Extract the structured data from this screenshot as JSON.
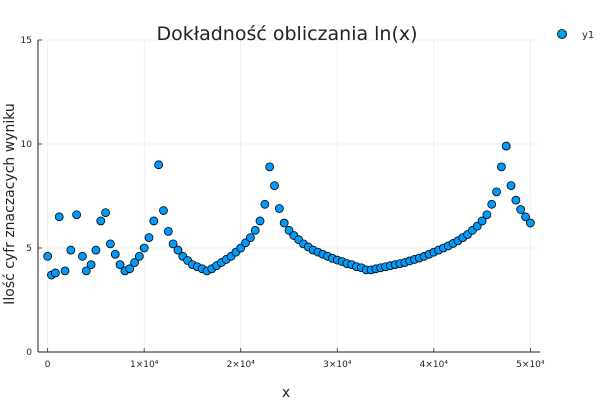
{
  "chart_data": {
    "type": "scatter",
    "title": "Dokładność obliczania ln(x)",
    "xlabel": "x",
    "ylabel": "Ilość cyfr znaczacych wyniku",
    "xlim": [
      -1000,
      51000
    ],
    "ylim": [
      0,
      15
    ],
    "xticks": [
      0,
      10000,
      20000,
      30000,
      40000,
      50000
    ],
    "xtick_labels": [
      "0",
      "1×10⁴",
      "2×10⁴",
      "3×10⁴",
      "4×10⁴",
      "5×10⁴"
    ],
    "yticks": [
      0,
      5,
      10,
      15
    ],
    "ytick_labels": [
      "0",
      "5",
      "10",
      "15"
    ],
    "grid": true,
    "legend_position": "top-right",
    "marker_color": "#009af9",
    "series": [
      {
        "name": "y1",
        "points": [
          [
            0,
            4.6
          ],
          [
            400,
            3.7
          ],
          [
            800,
            3.8
          ],
          [
            1200,
            6.5
          ],
          [
            1800,
            3.9
          ],
          [
            2400,
            4.9
          ],
          [
            3000,
            6.6
          ],
          [
            3600,
            4.6
          ],
          [
            4000,
            3.9
          ],
          [
            4500,
            4.2
          ],
          [
            5000,
            4.9
          ],
          [
            5500,
            6.3
          ],
          [
            6000,
            6.7
          ],
          [
            6500,
            5.2
          ],
          [
            7000,
            4.7
          ],
          [
            7500,
            4.2
          ],
          [
            8000,
            3.9
          ],
          [
            8500,
            4.0
          ],
          [
            9000,
            4.3
          ],
          [
            9500,
            4.6
          ],
          [
            10000,
            5.0
          ],
          [
            10500,
            5.5
          ],
          [
            11000,
            6.3
          ],
          [
            11500,
            9.0
          ],
          [
            12000,
            6.8
          ],
          [
            12500,
            5.8
          ],
          [
            13000,
            5.2
          ],
          [
            13500,
            4.9
          ],
          [
            14000,
            4.6
          ],
          [
            14500,
            4.4
          ],
          [
            15000,
            4.2
          ],
          [
            15500,
            4.1
          ],
          [
            16000,
            4.0
          ],
          [
            16500,
            3.9
          ],
          [
            17000,
            4.0
          ],
          [
            17500,
            4.15
          ],
          [
            18000,
            4.3
          ],
          [
            18500,
            4.45
          ],
          [
            19000,
            4.6
          ],
          [
            19500,
            4.8
          ],
          [
            20000,
            5.0
          ],
          [
            20500,
            5.25
          ],
          [
            21000,
            5.5
          ],
          [
            21500,
            5.85
          ],
          [
            22000,
            6.3
          ],
          [
            22500,
            7.1
          ],
          [
            23000,
            8.9
          ],
          [
            23500,
            8.0
          ],
          [
            24000,
            6.9
          ],
          [
            24500,
            6.2
          ],
          [
            25000,
            5.85
          ],
          [
            25500,
            5.6
          ],
          [
            26000,
            5.4
          ],
          [
            26500,
            5.2
          ],
          [
            27000,
            5.05
          ],
          [
            27500,
            4.9
          ],
          [
            28000,
            4.8
          ],
          [
            28500,
            4.7
          ],
          [
            29000,
            4.6
          ],
          [
            29500,
            4.5
          ],
          [
            30000,
            4.42
          ],
          [
            30500,
            4.35
          ],
          [
            31000,
            4.25
          ],
          [
            31500,
            4.2
          ],
          [
            32000,
            4.1
          ],
          [
            32500,
            4.05
          ],
          [
            33000,
            3.95
          ],
          [
            33500,
            3.95
          ],
          [
            34000,
            4.0
          ],
          [
            34500,
            4.05
          ],
          [
            35000,
            4.1
          ],
          [
            35500,
            4.15
          ],
          [
            36000,
            4.2
          ],
          [
            36500,
            4.25
          ],
          [
            37000,
            4.3
          ],
          [
            37500,
            4.38
          ],
          [
            38000,
            4.45
          ],
          [
            38500,
            4.52
          ],
          [
            39000,
            4.6
          ],
          [
            39500,
            4.7
          ],
          [
            40000,
            4.8
          ],
          [
            40500,
            4.9
          ],
          [
            41000,
            5.0
          ],
          [
            41500,
            5.1
          ],
          [
            42000,
            5.22
          ],
          [
            42500,
            5.35
          ],
          [
            43000,
            5.5
          ],
          [
            43500,
            5.65
          ],
          [
            44000,
            5.85
          ],
          [
            44500,
            6.05
          ],
          [
            45000,
            6.3
          ],
          [
            45500,
            6.6
          ],
          [
            46000,
            7.1
          ],
          [
            46500,
            7.7
          ],
          [
            47000,
            8.9
          ],
          [
            47500,
            9.9
          ],
          [
            48000,
            8.0
          ],
          [
            48500,
            7.3
          ],
          [
            49000,
            6.85
          ],
          [
            49500,
            6.5
          ],
          [
            50000,
            6.2
          ]
        ]
      }
    ]
  }
}
